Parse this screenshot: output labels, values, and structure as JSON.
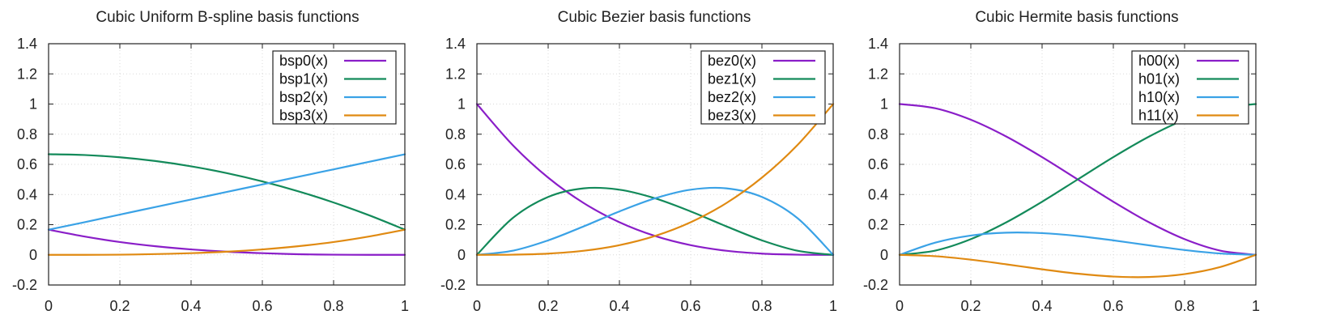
{
  "chart_data": [
    {
      "type": "line",
      "title": "Cubic Uniform B-spline basis functions",
      "xlim": [
        0,
        1
      ],
      "ylim": [
        -0.2,
        1.4
      ],
      "x_ticks": [
        "0",
        "0.2",
        "0.4",
        "0.6",
        "0.8",
        "1"
      ],
      "y_ticks": [
        "-0.2",
        "0",
        "0.2",
        "0.4",
        "0.6",
        "0.8",
        "1",
        "1.2",
        "1.4"
      ],
      "grid": true,
      "legend_position": "top-right",
      "x": [
        0,
        0.1,
        0.2,
        0.3,
        0.4,
        0.5,
        0.6,
        0.7,
        0.8,
        0.9,
        1
      ],
      "series": [
        {
          "name": "bsp0(x)",
          "color": "#8a1ec8",
          "values": [
            0.167,
            0.122,
            0.085,
            0.057,
            0.036,
            0.021,
            0.011,
            0.004,
            0.001,
            0.0,
            0.0
          ]
        },
        {
          "name": "bsp1(x)",
          "color": "#138a5a",
          "values": [
            0.667,
            0.662,
            0.647,
            0.622,
            0.587,
            0.542,
            0.487,
            0.422,
            0.347,
            0.262,
            0.167
          ]
        },
        {
          "name": "bsp2(x)",
          "color": "#3aa2e6",
          "values": [
            0.167,
            0.216,
            0.267,
            0.317,
            0.367,
            0.417,
            0.467,
            0.517,
            0.567,
            0.617,
            0.667
          ]
        },
        {
          "name": "bsp3(x)",
          "color": "#e08a12",
          "values": [
            0.0,
            0.0,
            0.001,
            0.005,
            0.011,
            0.021,
            0.036,
            0.057,
            0.085,
            0.122,
            0.167
          ]
        }
      ]
    },
    {
      "type": "line",
      "title": "Cubic Bezier basis functions",
      "xlim": [
        0,
        1
      ],
      "ylim": [
        -0.2,
        1.4
      ],
      "x_ticks": [
        "0",
        "0.2",
        "0.4",
        "0.6",
        "0.8",
        "1"
      ],
      "y_ticks": [
        "-0.2",
        "0",
        "0.2",
        "0.4",
        "0.6",
        "0.8",
        "1",
        "1.2",
        "1.4"
      ],
      "grid": true,
      "legend_position": "top-right",
      "x": [
        0,
        0.1,
        0.2,
        0.3,
        0.4,
        0.5,
        0.6,
        0.7,
        0.8,
        0.9,
        1
      ],
      "series": [
        {
          "name": "bez0(x)",
          "color": "#8a1ec8",
          "values": [
            1.0,
            0.729,
            0.512,
            0.343,
            0.216,
            0.125,
            0.064,
            0.027,
            0.008,
            0.001,
            0.0
          ]
        },
        {
          "name": "bez1(x)",
          "color": "#138a5a",
          "values": [
            0.0,
            0.243,
            0.384,
            0.441,
            0.432,
            0.375,
            0.288,
            0.189,
            0.096,
            0.027,
            0.0
          ]
        },
        {
          "name": "bez2(x)",
          "color": "#3aa2e6",
          "values": [
            0.0,
            0.027,
            0.096,
            0.189,
            0.288,
            0.375,
            0.432,
            0.441,
            0.384,
            0.243,
            0.0
          ]
        },
        {
          "name": "bez3(x)",
          "color": "#e08a12",
          "values": [
            0.0,
            0.001,
            0.008,
            0.027,
            0.064,
            0.125,
            0.216,
            0.343,
            0.512,
            0.729,
            1.0
          ]
        }
      ]
    },
    {
      "type": "line",
      "title": "Cubic Hermite basis functions",
      "xlim": [
        0,
        1
      ],
      "ylim": [
        -0.2,
        1.4
      ],
      "x_ticks": [
        "0",
        "0.2",
        "0.4",
        "0.6",
        "0.8",
        "1"
      ],
      "y_ticks": [
        "-0.2",
        "0",
        "0.2",
        "0.4",
        "0.6",
        "0.8",
        "1",
        "1.2",
        "1.4"
      ],
      "grid": true,
      "legend_position": "top-right",
      "x": [
        0,
        0.1,
        0.2,
        0.3,
        0.4,
        0.5,
        0.6,
        0.7,
        0.8,
        0.9,
        1
      ],
      "series": [
        {
          "name": "h00(x)",
          "color": "#8a1ec8",
          "values": [
            1.0,
            0.972,
            0.896,
            0.784,
            0.648,
            0.5,
            0.352,
            0.216,
            0.104,
            0.028,
            0.0
          ]
        },
        {
          "name": "h01(x)",
          "color": "#138a5a",
          "values": [
            0.0,
            0.028,
            0.104,
            0.216,
            0.352,
            0.5,
            0.648,
            0.784,
            0.896,
            0.972,
            1.0
          ]
        },
        {
          "name": "h10(x)",
          "color": "#3aa2e6",
          "values": [
            0.0,
            0.081,
            0.128,
            0.147,
            0.144,
            0.125,
            0.096,
            0.063,
            0.032,
            0.009,
            0.0
          ]
        },
        {
          "name": "h11(x)",
          "color": "#e08a12",
          "values": [
            0.0,
            -0.009,
            -0.032,
            -0.063,
            -0.096,
            -0.125,
            -0.144,
            -0.147,
            -0.128,
            -0.081,
            0.0
          ]
        }
      ]
    }
  ]
}
